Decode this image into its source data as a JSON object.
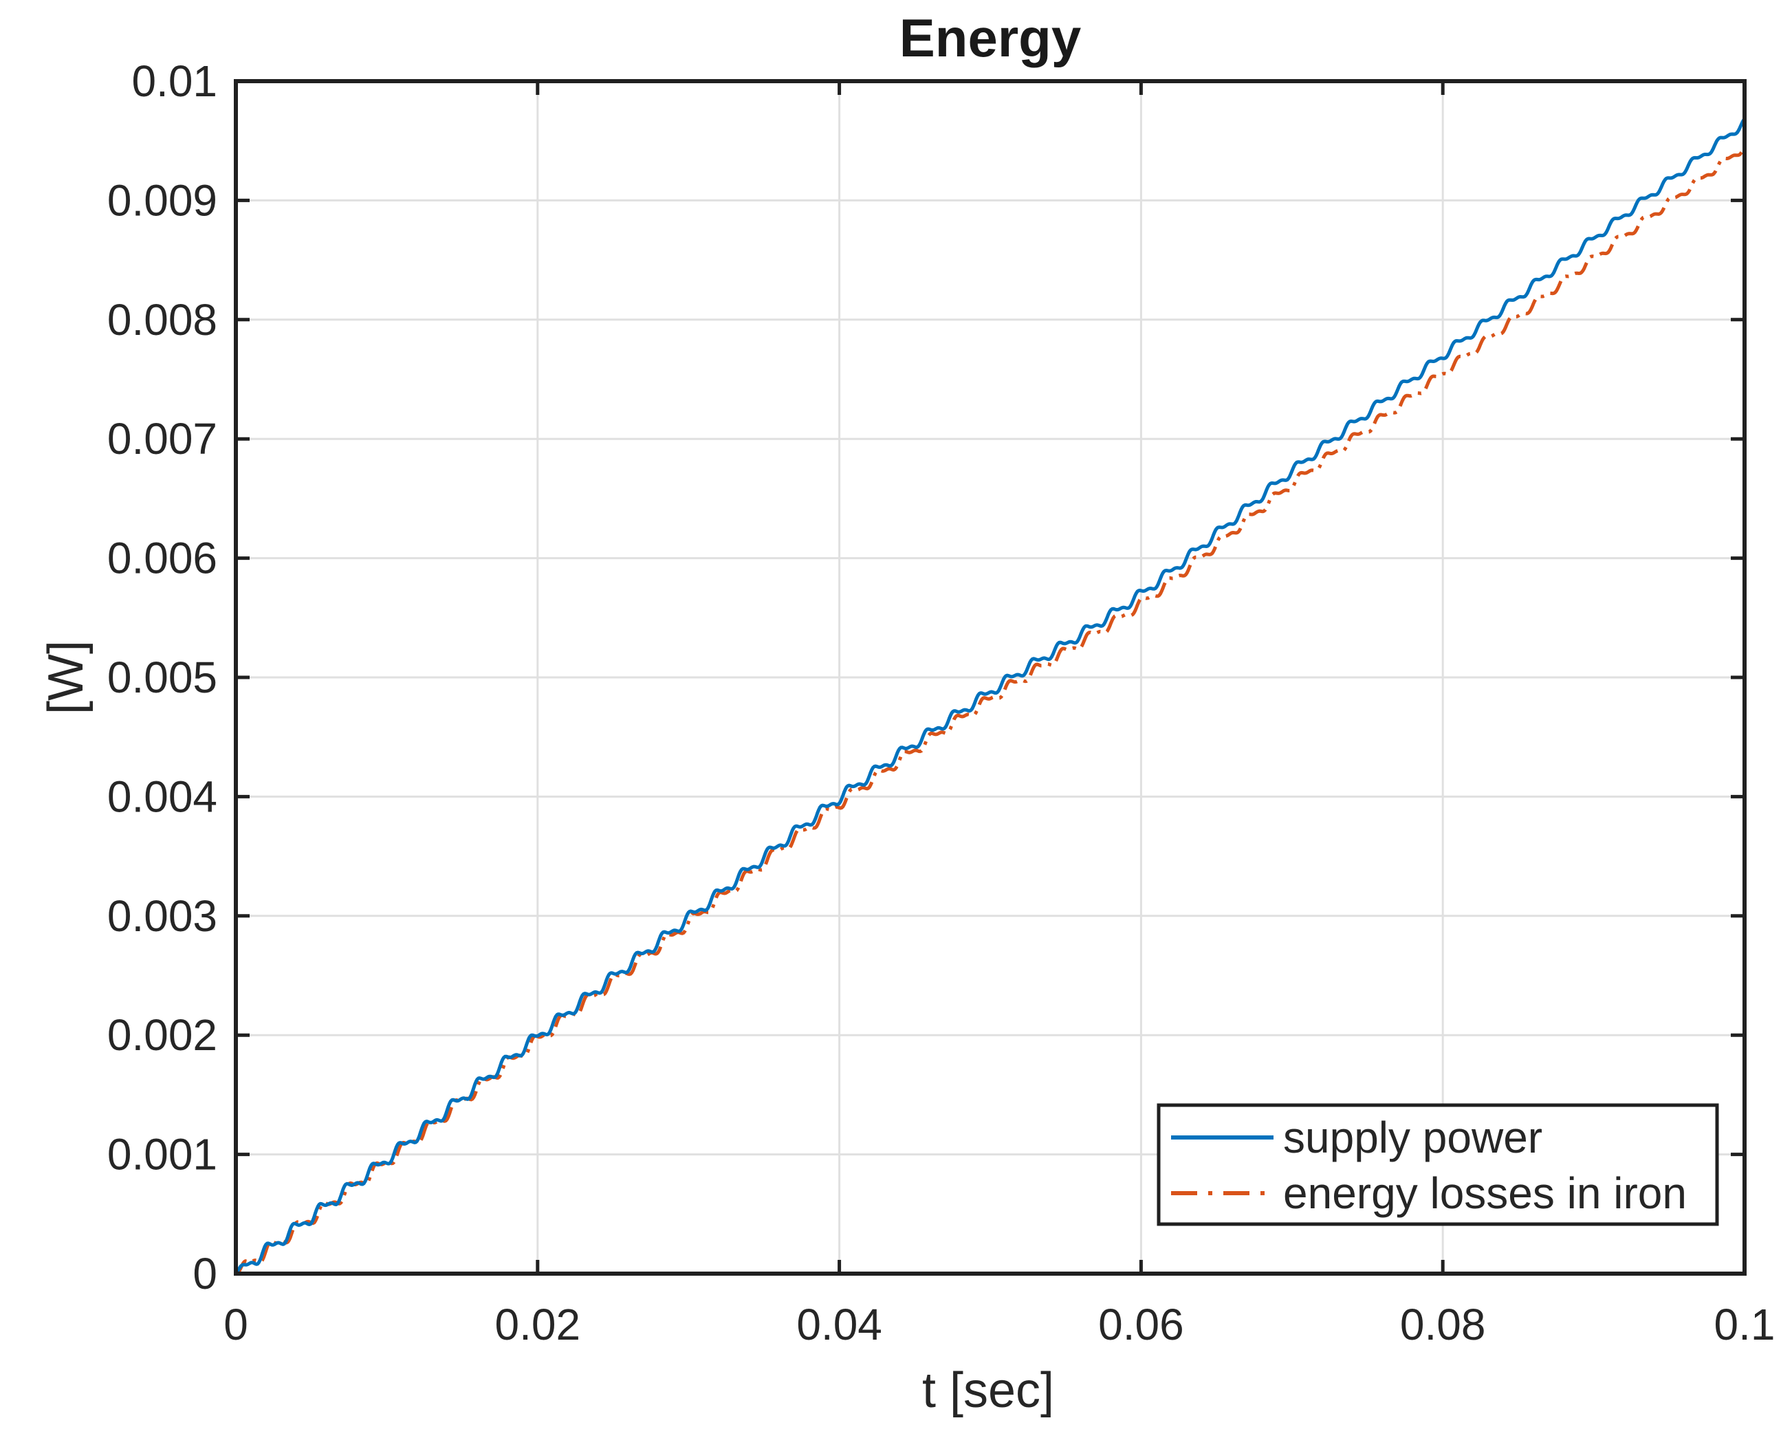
{
  "title": "Energy",
  "x_axis": {
    "label": "t [sec]",
    "min": 0,
    "max": 0.1,
    "tick_values": [
      0,
      0.02,
      0.04,
      0.06,
      0.08,
      0.1
    ],
    "tick_labels": [
      "0",
      "0.02",
      "0.04",
      "0.06",
      "0.08",
      "0.1"
    ]
  },
  "y_axis": {
    "label": "[W]",
    "min": 0,
    "max": 0.01,
    "tick_values": [
      0,
      0.001,
      0.002,
      0.003,
      0.004,
      0.005,
      0.006,
      0.007,
      0.008,
      0.009,
      0.01
    ],
    "tick_labels": [
      "0",
      "0.001",
      "0.002",
      "0.003",
      "0.004",
      "0.005",
      "0.006",
      "0.007",
      "0.008",
      "0.009",
      "0.01"
    ]
  },
  "legend": {
    "position": "bottom-right",
    "items": [
      {
        "label": "supply power",
        "color": "#0072BD",
        "line_style": "solid"
      },
      {
        "label": "energy losses in iron",
        "color": "#D95319",
        "line_style": "dash-dot"
      }
    ]
  },
  "colors": {
    "series1": "#0072BD",
    "series2": "#D95319",
    "grid": "#E0E0E0",
    "axis": "#202020",
    "text": "#262626",
    "background": "#FFFFFF"
  },
  "chart_data": {
    "type": "line",
    "title": "Energy",
    "xlabel": "t [sec]",
    "ylabel": "[W]",
    "xlim": [
      0,
      0.1
    ],
    "ylim": [
      0,
      0.01
    ],
    "grid": true,
    "legend_position": "bottom-right",
    "x": [
      0,
      0.01,
      0.02,
      0.03,
      0.04,
      0.05,
      0.06,
      0.07,
      0.08,
      0.09,
      0.1
    ],
    "series": [
      {
        "name": "supply power",
        "color": "#0072BD",
        "line_style": "solid",
        "values": [
          0,
          0.00096,
          0.00199,
          0.00298,
          0.00399,
          0.00488,
          0.0057,
          0.00673,
          0.0077,
          0.00868,
          0.00965
        ]
      },
      {
        "name": "energy losses in iron",
        "color": "#D95319",
        "line_style": "dash-dot",
        "values": [
          0,
          0.00094,
          0.00196,
          0.00294,
          0.00394,
          0.00482,
          0.00562,
          0.00662,
          0.00755,
          0.00851,
          0.00945
        ]
      }
    ],
    "ripple": {
      "description": "small sawtooth-like oscillation superimposed on both energy curves",
      "period_sec": 0.00175,
      "amplitude_start": 4.5e-05,
      "amplitude_end": 2.8e-05,
      "series2_phase_lag_rad": 0.8
    }
  }
}
